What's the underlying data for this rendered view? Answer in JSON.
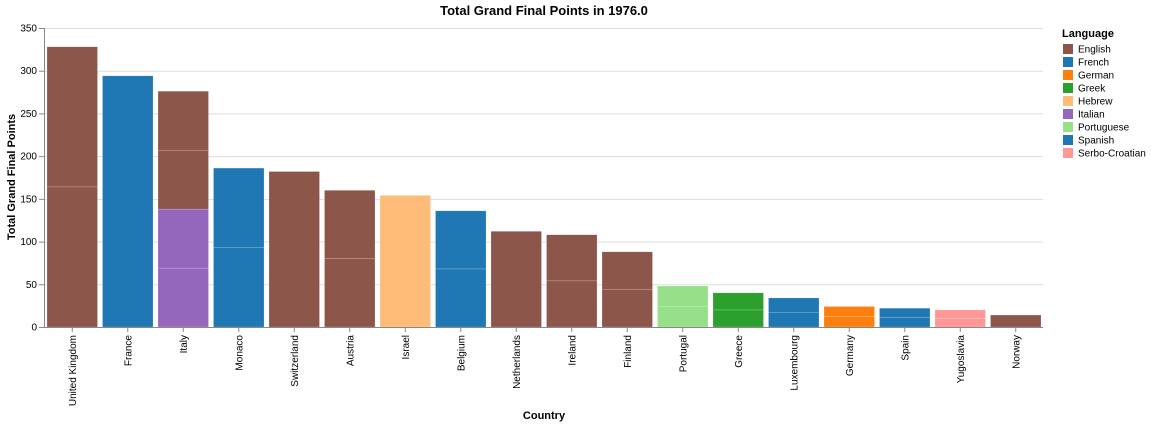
{
  "chart_data": {
    "type": "bar",
    "stacked": true,
    "title": "Total Grand Final Points in 1976.0",
    "xlabel": "Country",
    "ylabel": "Total Grand Final Points",
    "ylim": [
      0,
      350
    ],
    "yticks": [
      0,
      50,
      100,
      150,
      200,
      250,
      300,
      350
    ],
    "grid": true,
    "legend": {
      "title": "Language",
      "placement": "right",
      "entries": [
        {
          "name": "English",
          "color": "#8c564b"
        },
        {
          "name": "French",
          "color": "#1f77b4"
        },
        {
          "name": "German",
          "color": "#ff7f0e"
        },
        {
          "name": "Greek",
          "color": "#2ca02c"
        },
        {
          "name": "Hebrew",
          "color": "#ffbb78"
        },
        {
          "name": "Italian",
          "color": "#9467bd"
        },
        {
          "name": "Portuguese",
          "color": "#98df8a"
        },
        {
          "name": "Spanish",
          "color": "#1f77b4"
        },
        {
          "name": "Serbo-Croatian",
          "color": "#ff9896"
        }
      ]
    },
    "categories": [
      "United Kingdom",
      "France",
      "Italy",
      "Monaco",
      "Switzerland",
      "Austria",
      "Israel",
      "Belgium",
      "Netherlands",
      "Ireland",
      "Finland",
      "Portugal",
      "Greece",
      "Luxembourg",
      "Germany",
      "Spain",
      "Yugoslavia",
      "Norway"
    ],
    "bars": [
      {
        "country": "United Kingdom",
        "segments": [
          {
            "language": "English",
            "value": 164
          },
          {
            "language": "English",
            "value": 164
          }
        ]
      },
      {
        "country": "France",
        "segments": [
          {
            "language": "French",
            "value": 294
          }
        ]
      },
      {
        "country": "Italy",
        "segments": [
          {
            "language": "Italian",
            "value": 69
          },
          {
            "language": "Italian",
            "value": 69
          },
          {
            "language": "English",
            "value": 69
          },
          {
            "language": "English",
            "value": 69
          }
        ]
      },
      {
        "country": "Monaco",
        "segments": [
          {
            "language": "French",
            "value": 93
          },
          {
            "language": "French",
            "value": 93
          }
        ]
      },
      {
        "country": "Switzerland",
        "segments": [
          {
            "language": "English",
            "value": 182
          }
        ]
      },
      {
        "country": "Austria",
        "segments": [
          {
            "language": "English",
            "value": 80
          },
          {
            "language": "English",
            "value": 80
          }
        ]
      },
      {
        "country": "Israel",
        "segments": [
          {
            "language": "Hebrew",
            "value": 154
          }
        ]
      },
      {
        "country": "Belgium",
        "segments": [
          {
            "language": "French",
            "value": 68
          },
          {
            "language": "French",
            "value": 68
          }
        ]
      },
      {
        "country": "Netherlands",
        "segments": [
          {
            "language": "English",
            "value": 112
          }
        ]
      },
      {
        "country": "Ireland",
        "segments": [
          {
            "language": "English",
            "value": 54
          },
          {
            "language": "English",
            "value": 54
          }
        ]
      },
      {
        "country": "Finland",
        "segments": [
          {
            "language": "English",
            "value": 44
          },
          {
            "language": "English",
            "value": 44
          }
        ]
      },
      {
        "country": "Portugal",
        "segments": [
          {
            "language": "Portuguese",
            "value": 24
          },
          {
            "language": "Portuguese",
            "value": 24
          }
        ]
      },
      {
        "country": "Greece",
        "segments": [
          {
            "language": "Greek",
            "value": 20
          },
          {
            "language": "Greek",
            "value": 20
          }
        ]
      },
      {
        "country": "Luxembourg",
        "segments": [
          {
            "language": "French",
            "value": 17
          },
          {
            "language": "French",
            "value": 17
          }
        ]
      },
      {
        "country": "Germany",
        "segments": [
          {
            "language": "German",
            "value": 12
          },
          {
            "language": "German",
            "value": 12
          }
        ]
      },
      {
        "country": "Spain",
        "segments": [
          {
            "language": "Spanish",
            "value": 11
          },
          {
            "language": "Spanish",
            "value": 11
          }
        ]
      },
      {
        "country": "Yugoslavia",
        "segments": [
          {
            "language": "Serbo-Croatian",
            "value": 10
          },
          {
            "language": "Serbo-Croatian",
            "value": 10
          }
        ]
      },
      {
        "country": "Norway",
        "segments": [
          {
            "language": "English",
            "value": 14
          }
        ]
      }
    ]
  }
}
